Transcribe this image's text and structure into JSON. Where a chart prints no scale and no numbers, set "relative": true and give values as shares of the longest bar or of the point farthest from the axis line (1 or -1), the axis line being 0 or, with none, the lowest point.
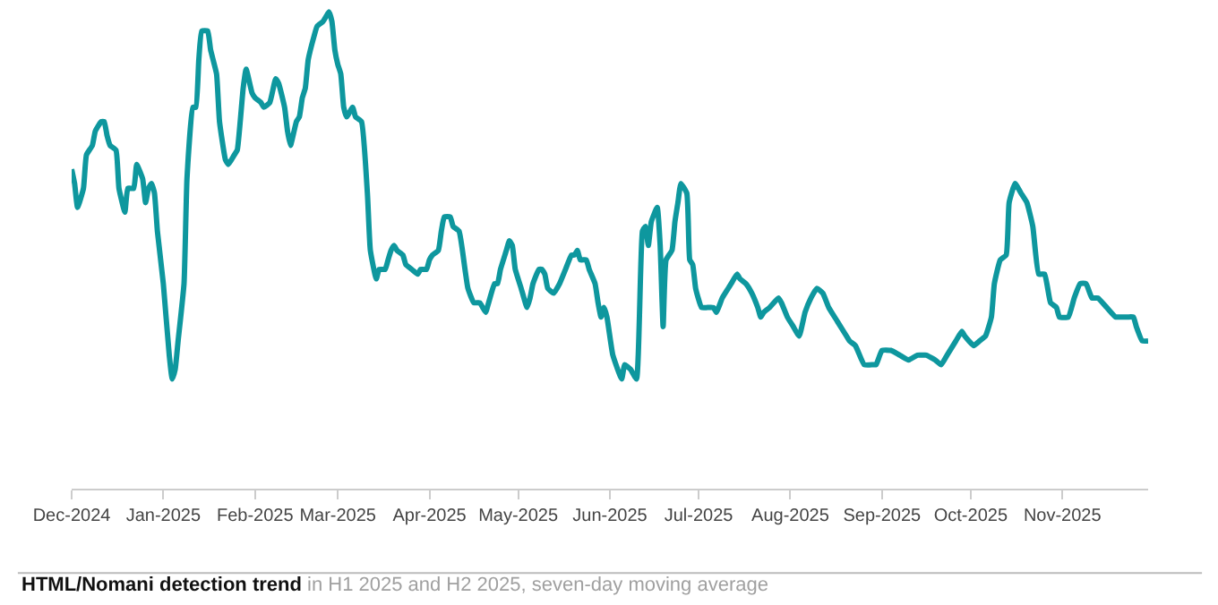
{
  "chart_data": {
    "type": "line",
    "relative": true,
    "title": "HTML/Nomani detection trend",
    "subtitle": "in H1 2025 and H2 2025, seven-day moving average",
    "xlim": [
      "2024-12-01",
      "2025-11-30"
    ],
    "xticks": [
      {
        "value": "2024-12-01",
        "label": "Dec-2024"
      },
      {
        "value": "2025-01-01",
        "label": "Jan-2025"
      },
      {
        "value": "2025-02-01",
        "label": "Feb-2025"
      },
      {
        "value": "2025-03-01",
        "label": "Mar-2025"
      },
      {
        "value": "2025-04-01",
        "label": "Apr-2025"
      },
      {
        "value": "2025-05-01",
        "label": "May-2025"
      },
      {
        "value": "2025-06-01",
        "label": "Jun-2025"
      },
      {
        "value": "2025-07-01",
        "label": "Jul-2025"
      },
      {
        "value": "2025-08-01",
        "label": "Aug-2025"
      },
      {
        "value": "2025-09-01",
        "label": "Sep-2025"
      },
      {
        "value": "2025-10-01",
        "label": "Oct-2025"
      },
      {
        "value": "2025-11-01",
        "label": "Nov-2025"
      }
    ],
    "marker": "none",
    "line_style": "solid",
    "tick_labels": "x",
    "x": [
      "2024-12-01",
      "2024-12-02",
      "2024-12-03",
      "2024-12-05",
      "2024-12-06",
      "2024-12-08",
      "2024-12-09",
      "2024-12-11",
      "2024-12-12",
      "2024-12-13",
      "2024-12-14",
      "2024-12-16",
      "2024-12-17",
      "2024-12-19",
      "2024-12-20",
      "2024-12-22",
      "2024-12-23",
      "2024-12-25",
      "2024-12-26",
      "2024-12-27",
      "2024-12-28",
      "2024-12-29",
      "2024-12-30",
      "2025-01-01",
      "2025-01-03",
      "2025-01-04",
      "2025-01-05",
      "2025-01-06",
      "2025-01-08",
      "2025-01-09",
      "2025-01-11",
      "2025-01-12",
      "2025-01-13",
      "2025-01-14",
      "2025-01-16",
      "2025-01-17",
      "2025-01-19",
      "2025-01-20",
      "2025-01-22",
      "2025-01-23",
      "2025-01-25",
      "2025-01-26",
      "2025-01-27",
      "2025-01-28",
      "2025-01-29",
      "2025-01-31",
      "2025-02-01",
      "2025-02-03",
      "2025-02-04",
      "2025-02-06",
      "2025-02-08",
      "2025-02-09",
      "2025-02-11",
      "2025-02-12",
      "2025-02-13",
      "2025-02-15",
      "2025-02-16",
      "2025-02-17",
      "2025-02-18",
      "2025-02-19",
      "2025-02-21",
      "2025-02-22",
      "2025-02-24",
      "2025-02-25",
      "2025-02-26",
      "2025-02-27",
      "2025-02-28",
      "2025-03-01",
      "2025-03-02",
      "2025-03-03",
      "2025-03-04",
      "2025-03-06",
      "2025-03-07",
      "2025-03-09",
      "2025-03-11",
      "2025-03-12",
      "2025-03-14",
      "2025-03-15",
      "2025-03-17",
      "2025-03-18",
      "2025-03-19",
      "2025-03-20",
      "2025-03-21",
      "2025-03-23",
      "2025-03-24",
      "2025-03-26",
      "2025-03-28",
      "2025-03-29",
      "2025-03-31",
      "2025-04-01",
      "2025-04-02",
      "2025-04-04",
      "2025-04-05",
      "2025-04-06",
      "2025-04-08",
      "2025-04-09",
      "2025-04-11",
      "2025-04-13",
      "2025-04-14",
      "2025-04-16",
      "2025-04-18",
      "2025-04-19",
      "2025-04-20",
      "2025-04-21",
      "2025-04-23",
      "2025-04-24",
      "2025-04-25",
      "2025-04-27",
      "2025-04-28",
      "2025-04-29",
      "2025-04-30",
      "2025-05-02",
      "2025-05-04",
      "2025-05-05",
      "2025-05-06",
      "2025-05-08",
      "2025-05-09",
      "2025-05-10",
      "2025-05-11",
      "2025-05-13",
      "2025-05-15",
      "2025-05-17",
      "2025-05-19",
      "2025-05-20",
      "2025-05-21",
      "2025-05-22",
      "2025-05-24",
      "2025-05-25",
      "2025-05-27",
      "2025-05-28",
      "2025-05-29",
      "2025-05-30",
      "2025-05-31",
      "2025-06-02",
      "2025-06-05",
      "2025-06-06",
      "2025-06-08",
      "2025-06-10",
      "2025-06-12",
      "2025-06-13",
      "2025-06-14",
      "2025-06-15",
      "2025-06-17",
      "2025-06-18",
      "2025-06-19",
      "2025-06-20",
      "2025-06-22",
      "2025-06-23",
      "2025-06-24",
      "2025-06-25",
      "2025-06-27",
      "2025-06-28",
      "2025-06-29",
      "2025-06-30",
      "2025-07-02",
      "2025-07-04",
      "2025-07-06",
      "2025-07-07",
      "2025-07-09",
      "2025-07-11",
      "2025-07-12",
      "2025-07-14",
      "2025-07-15",
      "2025-07-17",
      "2025-07-19",
      "2025-07-21",
      "2025-07-22",
      "2025-07-23",
      "2025-07-25",
      "2025-07-28",
      "2025-07-29",
      "2025-07-31",
      "2025-08-02",
      "2025-08-04",
      "2025-08-06",
      "2025-08-08",
      "2025-08-10",
      "2025-08-12",
      "2025-08-14",
      "2025-08-17",
      "2025-08-20",
      "2025-08-21",
      "2025-08-23",
      "2025-08-26",
      "2025-08-29",
      "2025-08-30",
      "2025-09-01",
      "2025-09-04",
      "2025-09-07",
      "2025-09-10",
      "2025-09-13",
      "2025-09-15",
      "2025-09-16",
      "2025-09-19",
      "2025-09-21",
      "2025-09-23",
      "2025-09-26",
      "2025-09-28",
      "2025-09-29",
      "2025-10-02",
      "2025-10-04",
      "2025-10-06",
      "2025-10-08",
      "2025-10-09",
      "2025-10-11",
      "2025-10-13",
      "2025-10-14",
      "2025-10-16",
      "2025-10-18",
      "2025-10-20",
      "2025-10-22",
      "2025-10-24",
      "2025-10-26",
      "2025-10-28",
      "2025-10-30",
      "2025-10-31",
      "2025-11-03",
      "2025-11-05",
      "2025-11-07",
      "2025-11-09",
      "2025-11-11",
      "2025-11-13",
      "2025-11-16",
      "2025-11-19",
      "2025-11-20",
      "2025-11-23",
      "2025-11-25",
      "2025-11-26",
      "2025-11-28",
      "2025-11-30"
    ],
    "series": [
      {
        "color": "#0e979e",
        "values": [
          0.67,
          0.64,
          0.59,
          0.63,
          0.7,
          0.72,
          0.75,
          0.77,
          0.77,
          0.74,
          0.72,
          0.71,
          0.63,
          0.58,
          0.63,
          0.63,
          0.68,
          0.65,
          0.6,
          0.63,
          0.64,
          0.62,
          0.54,
          0.43,
          0.28,
          0.23,
          0.25,
          0.31,
          0.43,
          0.65,
          0.8,
          0.8,
          0.9,
          0.96,
          0.96,
          0.92,
          0.87,
          0.77,
          0.69,
          0.68,
          0.7,
          0.71,
          0.77,
          0.84,
          0.88,
          0.83,
          0.82,
          0.81,
          0.8,
          0.81,
          0.86,
          0.85,
          0.8,
          0.75,
          0.72,
          0.77,
          0.78,
          0.82,
          0.84,
          0.9,
          0.95,
          0.97,
          0.98,
          0.99,
          1,
          0.98,
          0.92,
          0.89,
          0.87,
          0.8,
          0.78,
          0.8,
          0.78,
          0.77,
          0.62,
          0.5,
          0.44,
          0.46,
          0.46,
          0.48,
          0.5,
          0.51,
          0.5,
          0.49,
          0.47,
          0.46,
          0.45,
          0.46,
          0.46,
          0.48,
          0.49,
          0.5,
          0.54,
          0.57,
          0.57,
          0.55,
          0.54,
          0.46,
          0.42,
          0.39,
          0.39,
          0.38,
          0.37,
          0.39,
          0.43,
          0.43,
          0.46,
          0.5,
          0.52,
          0.51,
          0.46,
          0.42,
          0.38,
          0.4,
          0.43,
          0.46,
          0.46,
          0.45,
          0.42,
          0.41,
          0.43,
          0.46,
          0.49,
          0.49,
          0.5,
          0.48,
          0.48,
          0.46,
          0.43,
          0.39,
          0.36,
          0.38,
          0.36,
          0.28,
          0.23,
          0.26,
          0.25,
          0.23,
          0.54,
          0.55,
          0.51,
          0.56,
          0.59,
          0.51,
          0.34,
          0.48,
          0.5,
          0.56,
          0.6,
          0.64,
          0.62,
          0.48,
          0.47,
          0.42,
          0.38,
          0.38,
          0.38,
          0.37,
          0.4,
          0.42,
          0.43,
          0.45,
          0.44,
          0.43,
          0.41,
          0.38,
          0.36,
          0.37,
          0.38,
          0.4,
          0.39,
          0.36,
          0.34,
          0.32,
          0.37,
          0.4,
          0.42,
          0.41,
          0.38,
          0.35,
          0.32,
          0.31,
          0.3,
          0.26,
          0.26,
          0.26,
          0.29,
          0.29,
          0.28,
          0.27,
          0.28,
          0.28,
          0.28,
          0.27,
          0.26,
          0.28,
          0.31,
          0.33,
          0.32,
          0.3,
          0.31,
          0.32,
          0.36,
          0.43,
          0.48,
          0.49,
          0.6,
          0.64,
          0.62,
          0.6,
          0.55,
          0.45,
          0.45,
          0.39,
          0.38,
          0.36,
          0.36,
          0.4,
          0.43,
          0.43,
          0.4,
          0.4,
          0.38,
          0.36,
          0.36,
          0.36,
          0.36,
          0.34,
          0.31,
          0.31
        ]
      }
    ]
  }
}
